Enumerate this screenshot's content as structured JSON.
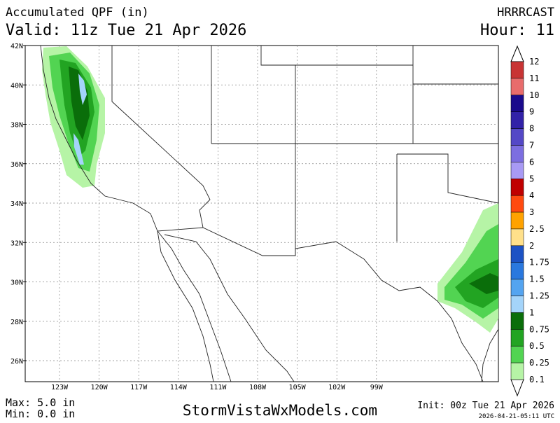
{
  "header": {
    "title": "Accumulated QPF (in)",
    "valid": "Valid: 11z Tue 21 Apr 2026",
    "model": "HRRRCAST",
    "hour": "Hour: 11"
  },
  "map": {
    "lat_labels": [
      "42N",
      "40N",
      "38N",
      "36N",
      "34N",
      "32N",
      "30N",
      "28N",
      "26N"
    ],
    "lon_labels": [
      "123W",
      "120W",
      "117W",
      "114W",
      "111W",
      "108W",
      "105W",
      "102W",
      "99W"
    ]
  },
  "colorbar": {
    "labels": [
      "12",
      "11",
      "10",
      "9",
      "8",
      "7",
      "6",
      "5",
      "4",
      "3",
      "2.5",
      "2",
      "1.75",
      "1.5",
      "1.25",
      "1",
      "0.75",
      "0.5",
      "0.25",
      "0.1"
    ],
    "colors": [
      "#a51c1c",
      "#c83434",
      "#e86c6c",
      "#1a0a8c",
      "#3222a8",
      "#5448c6",
      "#7c6ee0",
      "#a89af4",
      "#c00000",
      "#ff4a10",
      "#ffa200",
      "#ffe08a",
      "#1c52c4",
      "#2a78de",
      "#54a4f0",
      "#a4d4fa",
      "#0a6e0a",
      "#22a422",
      "#52d452",
      "#b6f4a6"
    ]
  },
  "footer": {
    "max": "Max: 5.0 in",
    "min": "Min: 0.0 in",
    "site": "StormVistaWxModels.com",
    "init": "Init: 00z Tue 21 Apr 2026",
    "stamp": "2026-04-21-05:11 UTC"
  }
}
